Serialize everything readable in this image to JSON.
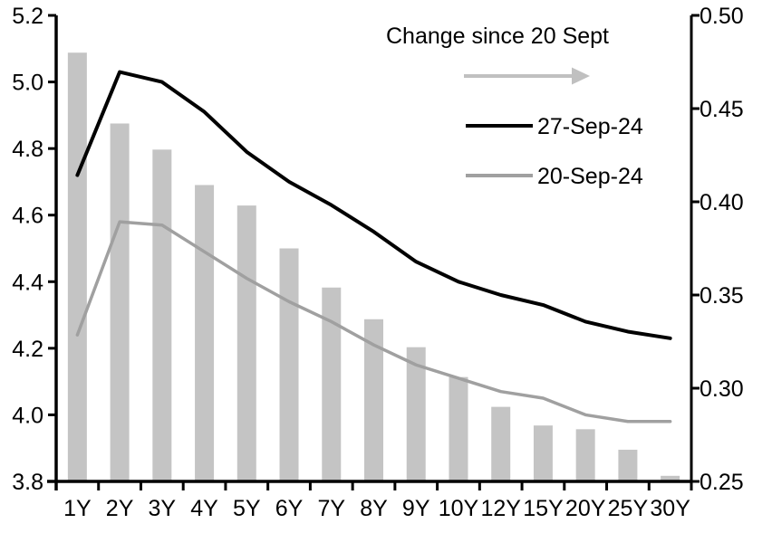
{
  "chart_data": {
    "type": "combo_bar_line",
    "title": "",
    "categories": [
      "1Y",
      "2Y",
      "3Y",
      "4Y",
      "5Y",
      "6Y",
      "7Y",
      "8Y",
      "9Y",
      "10Y",
      "12Y",
      "15Y",
      "20Y",
      "25Y",
      "30Y"
    ],
    "left_axis": {
      "min": 3.8,
      "max": 5.2,
      "tick_values": [
        5.2,
        5.0,
        4.8,
        4.6,
        4.4,
        4.2,
        4.0,
        3.8
      ],
      "tick_labels": [
        "5.2",
        "5.0",
        "4.8",
        "4.6",
        "4.4",
        "4.2",
        "4.0",
        "3.8"
      ]
    },
    "right_axis": {
      "min": 0.25,
      "max": 0.5,
      "tick_values": [
        0.5,
        0.45,
        0.4,
        0.35,
        0.3,
        0.25
      ],
      "tick_labels": [
        "0.50",
        "0.45",
        "0.40",
        "0.35",
        "0.30",
        "0.25"
      ]
    },
    "bar_series": {
      "name": "Change since 20 Sept",
      "axis": "right",
      "color": "#c4c4c4",
      "values": [
        0.48,
        0.442,
        0.428,
        0.409,
        0.398,
        0.375,
        0.354,
        0.337,
        0.322,
        0.306,
        0.29,
        0.28,
        0.278,
        0.267,
        0.253
      ]
    },
    "line_series": [
      {
        "name": "27-Sep-24",
        "axis": "left",
        "color": "#000000",
        "values": [
          4.72,
          5.03,
          5.0,
          4.91,
          4.79,
          4.7,
          4.63,
          4.55,
          4.46,
          4.4,
          4.36,
          4.33,
          4.28,
          4.25,
          4.23
        ]
      },
      {
        "name": "20-Sep-24",
        "axis": "left",
        "color": "#a0a0a0",
        "values": [
          4.24,
          4.58,
          4.57,
          4.49,
          4.41,
          4.34,
          4.28,
          4.21,
          4.15,
          4.11,
          4.07,
          4.05,
          4.0,
          3.98,
          3.98
        ]
      }
    ],
    "legend": {
      "title": "Change since 20 Sept",
      "arrow_color": "#c0c0c0",
      "entries": [
        "27-Sep-24",
        "20-Sep-24"
      ]
    },
    "layout_hints": {
      "grid": false,
      "legend_position": "top-right-inside"
    }
  }
}
